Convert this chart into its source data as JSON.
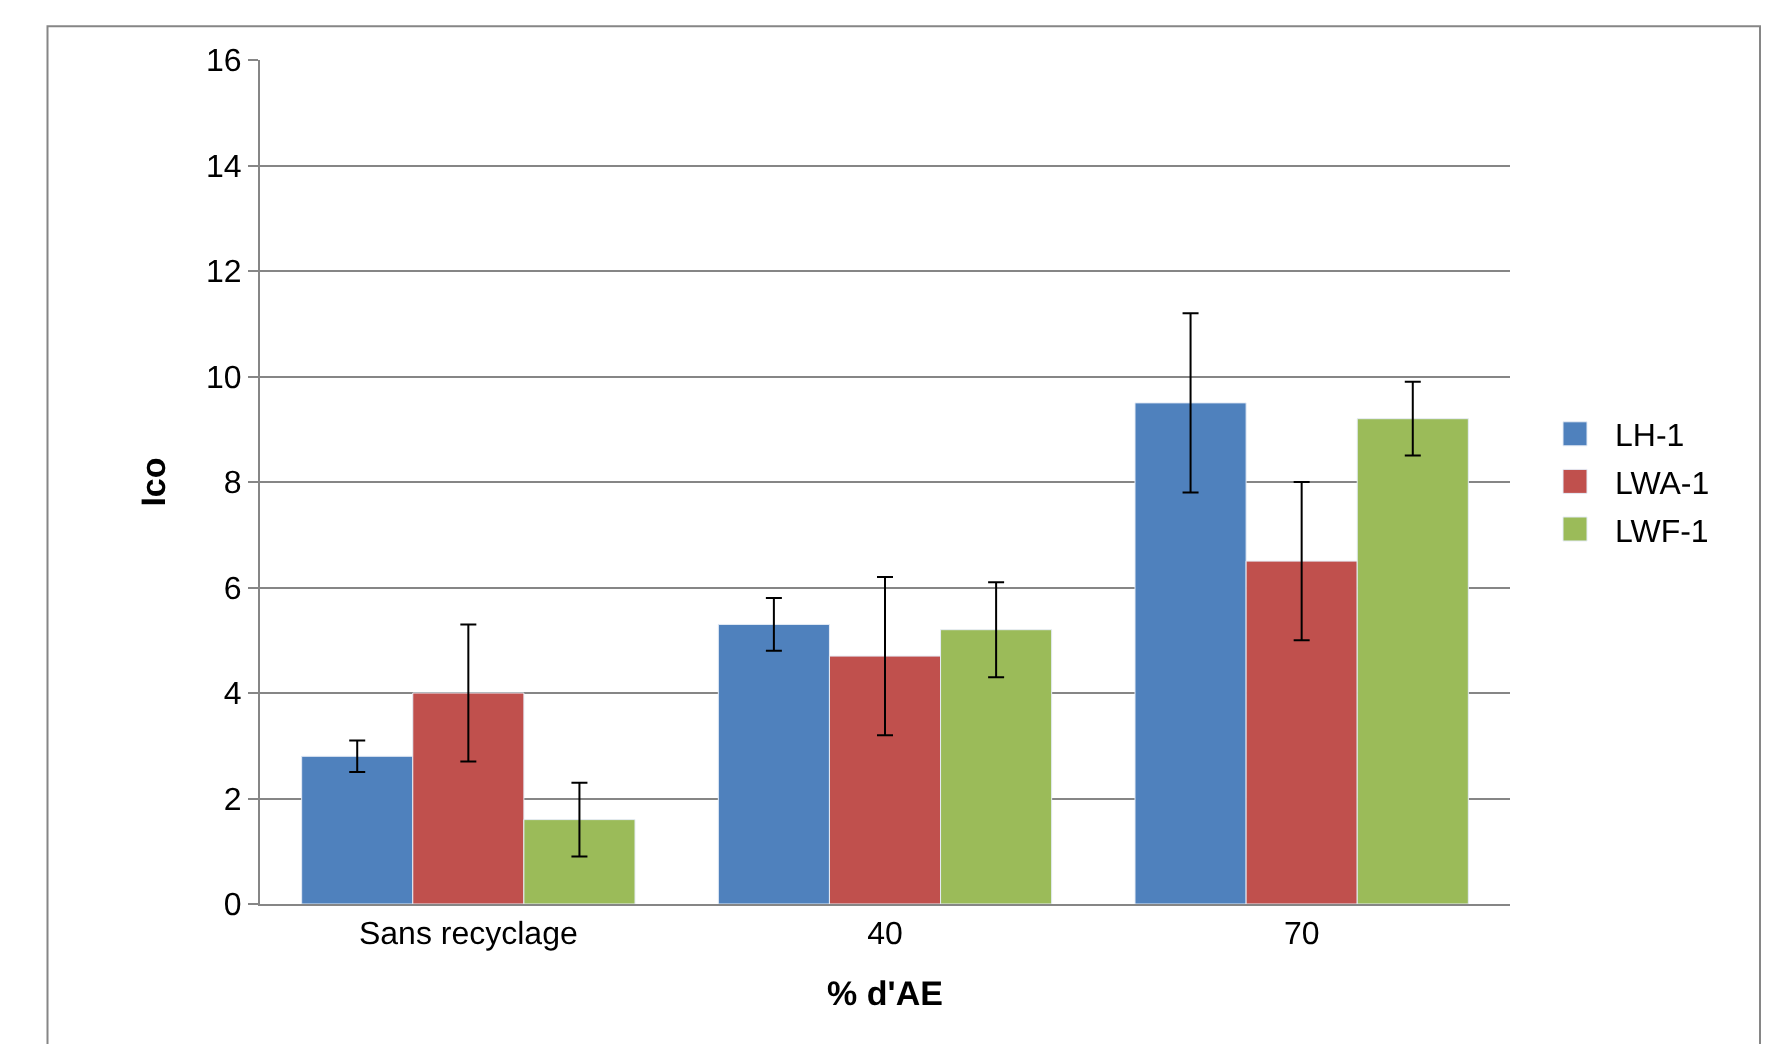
{
  "chart_data": {
    "type": "bar",
    "xlabel": "% d'AE",
    "ylabel": "Ico",
    "categories": [
      "Sans recyclage",
      "40",
      "70"
    ],
    "series": [
      {
        "name": "LH-1",
        "color": "#4f81bd",
        "values": [
          2.8,
          5.3,
          9.5
        ],
        "errors": [
          0.3,
          0.5,
          1.7
        ]
      },
      {
        "name": "LWA-1",
        "color": "#c0504d",
        "values": [
          4.0,
          4.7,
          6.5
        ],
        "errors": [
          1.3,
          1.5,
          1.5
        ]
      },
      {
        "name": "LWF-1",
        "color": "#9bbb59",
        "values": [
          1.6,
          5.2,
          9.2
        ],
        "errors": [
          0.7,
          0.9,
          0.7
        ]
      }
    ],
    "ylim": [
      0,
      16
    ],
    "yticks": [
      0,
      2,
      4,
      6,
      8,
      10,
      12,
      14,
      16
    ],
    "grid": "y",
    "legend": "right"
  }
}
